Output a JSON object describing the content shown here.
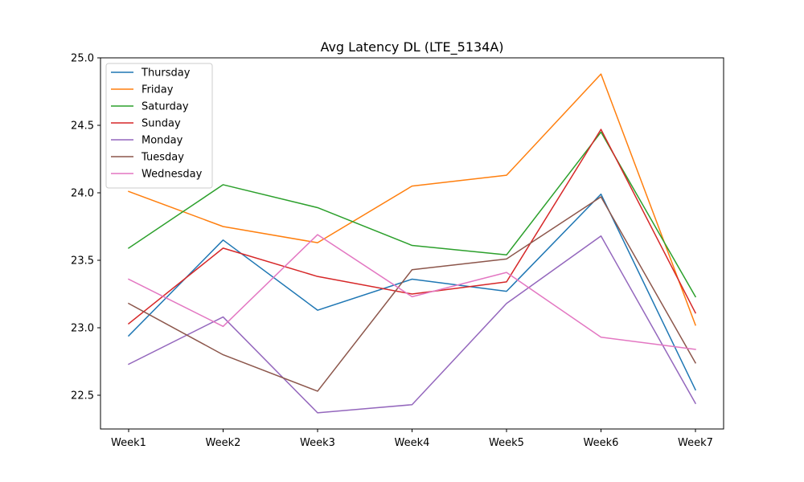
{
  "chart_data": {
    "type": "line",
    "title": "Avg Latency DL (LTE_5134A)",
    "xlabel": "",
    "ylabel": "",
    "categories": [
      "Week1",
      "Week2",
      "Week3",
      "Week4",
      "Week5",
      "Week6",
      "Week7"
    ],
    "ylim": [
      22.25,
      25.0
    ],
    "yticks": [
      22.5,
      23.0,
      23.5,
      24.0,
      24.5,
      25.0
    ],
    "ytick_labels": [
      "22.5",
      "23.0",
      "23.5",
      "24.0",
      "24.5",
      "25.0"
    ],
    "grid": false,
    "legend_position": "top-left",
    "series": [
      {
        "name": "Thursday",
        "color": "#1f77b4",
        "values": [
          22.94,
          23.65,
          23.13,
          23.36,
          23.27,
          23.99,
          22.54
        ]
      },
      {
        "name": "Friday",
        "color": "#ff7f0e",
        "values": [
          24.01,
          23.75,
          23.63,
          24.05,
          24.13,
          24.88,
          23.02
        ]
      },
      {
        "name": "Saturday",
        "color": "#2ca02c",
        "values": [
          23.59,
          24.06,
          23.89,
          23.61,
          23.54,
          24.45,
          23.23
        ]
      },
      {
        "name": "Sunday",
        "color": "#d62728",
        "values": [
          23.03,
          23.59,
          23.38,
          23.25,
          23.34,
          24.47,
          23.11
        ]
      },
      {
        "name": "Monday",
        "color": "#9467bd",
        "values": [
          22.73,
          23.08,
          22.37,
          22.43,
          23.18,
          23.68,
          22.44
        ]
      },
      {
        "name": "Tuesday",
        "color": "#8c564b",
        "values": [
          23.18,
          22.8,
          22.53,
          23.43,
          23.51,
          23.97,
          22.74
        ]
      },
      {
        "name": "Wednesday",
        "color": "#e377c2",
        "values": [
          23.36,
          23.01,
          23.69,
          23.23,
          23.41,
          22.93,
          22.84
        ]
      }
    ]
  }
}
